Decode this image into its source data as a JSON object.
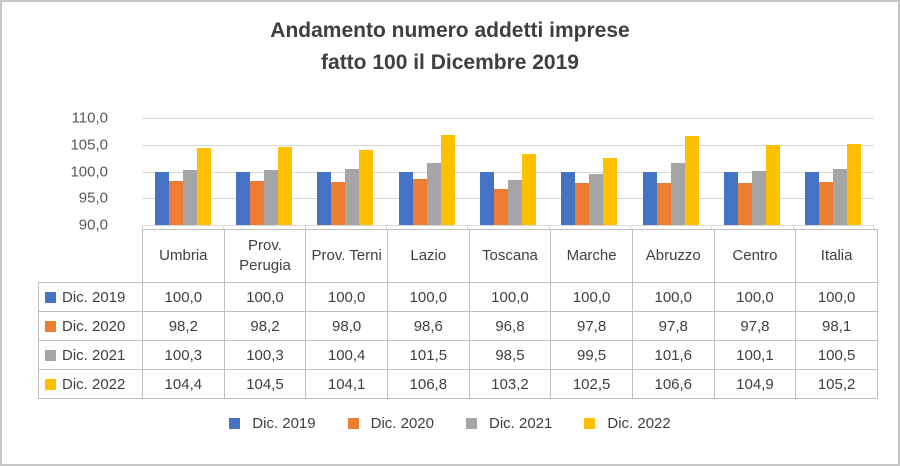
{
  "header": {
    "title_line1": "Andamento numero addetti imprese",
    "title_line2": "fatto 100 il Dicembre 2019"
  },
  "chart_data": {
    "type": "bar",
    "title": "Andamento numero addetti imprese fatto 100 il Dicembre 2019",
    "categories": [
      "Umbria",
      "Prov. Perugia",
      "Prov. Terni",
      "Lazio",
      "Toscana",
      "Marche",
      "Abruzzo",
      "Centro",
      "Italia"
    ],
    "series": [
      {
        "name": "Dic. 2019",
        "color": "#4472C4",
        "values": [
          100.0,
          100.0,
          100.0,
          100.0,
          100.0,
          100.0,
          100.0,
          100.0,
          100.0
        ]
      },
      {
        "name": "Dic. 2020",
        "color": "#ED7D31",
        "values": [
          98.2,
          98.2,
          98.0,
          98.6,
          96.8,
          97.8,
          97.8,
          97.8,
          98.1
        ]
      },
      {
        "name": "Dic. 2021",
        "color": "#A5A5A5",
        "values": [
          100.3,
          100.3,
          100.4,
          101.5,
          98.5,
          99.5,
          101.6,
          100.1,
          100.5
        ]
      },
      {
        "name": "Dic. 2022",
        "color": "#FFC000",
        "values": [
          104.4,
          104.5,
          104.1,
          106.8,
          103.2,
          102.5,
          106.6,
          104.9,
          105.2
        ]
      }
    ],
    "ylim": [
      90,
      110
    ],
    "ytick_labels": [
      "110,0",
      "105,0",
      "100,0",
      "95,0",
      "90,0"
    ],
    "grid": true,
    "legend_position": "bottom"
  },
  "table": {
    "col_headers": [
      "Umbria",
      "Prov. Perugia",
      "Prov. Terni",
      "Lazio",
      "Toscana",
      "Marche",
      "Abruzzo",
      "Centro",
      "Italia"
    ],
    "rows": [
      {
        "label": "Dic. 2019",
        "color": "#4472C4",
        "cells": [
          "100,0",
          "100,0",
          "100,0",
          "100,0",
          "100,0",
          "100,0",
          "100,0",
          "100,0",
          "100,0"
        ]
      },
      {
        "label": "Dic. 2020",
        "color": "#ED7D31",
        "cells": [
          "98,2",
          "98,2",
          "98,0",
          "98,6",
          "96,8",
          "97,8",
          "97,8",
          "97,8",
          "98,1"
        ]
      },
      {
        "label": "Dic. 2021",
        "color": "#A5A5A5",
        "cells": [
          "100,3",
          "100,3",
          "100,4",
          "101,5",
          "98,5",
          "99,5",
          "101,6",
          "100,1",
          "100,5"
        ]
      },
      {
        "label": "Dic. 2022",
        "color": "#FFC000",
        "cells": [
          "104,4",
          "104,5",
          "104,1",
          "106,8",
          "103,2",
          "102,5",
          "106,6",
          "104,9",
          "105,2"
        ]
      }
    ]
  },
  "colors": {
    "grid": "#d9d9d9",
    "table_border": "#c0c0c0",
    "title_text": "#3f3f3f",
    "axis_text": "#595959"
  }
}
